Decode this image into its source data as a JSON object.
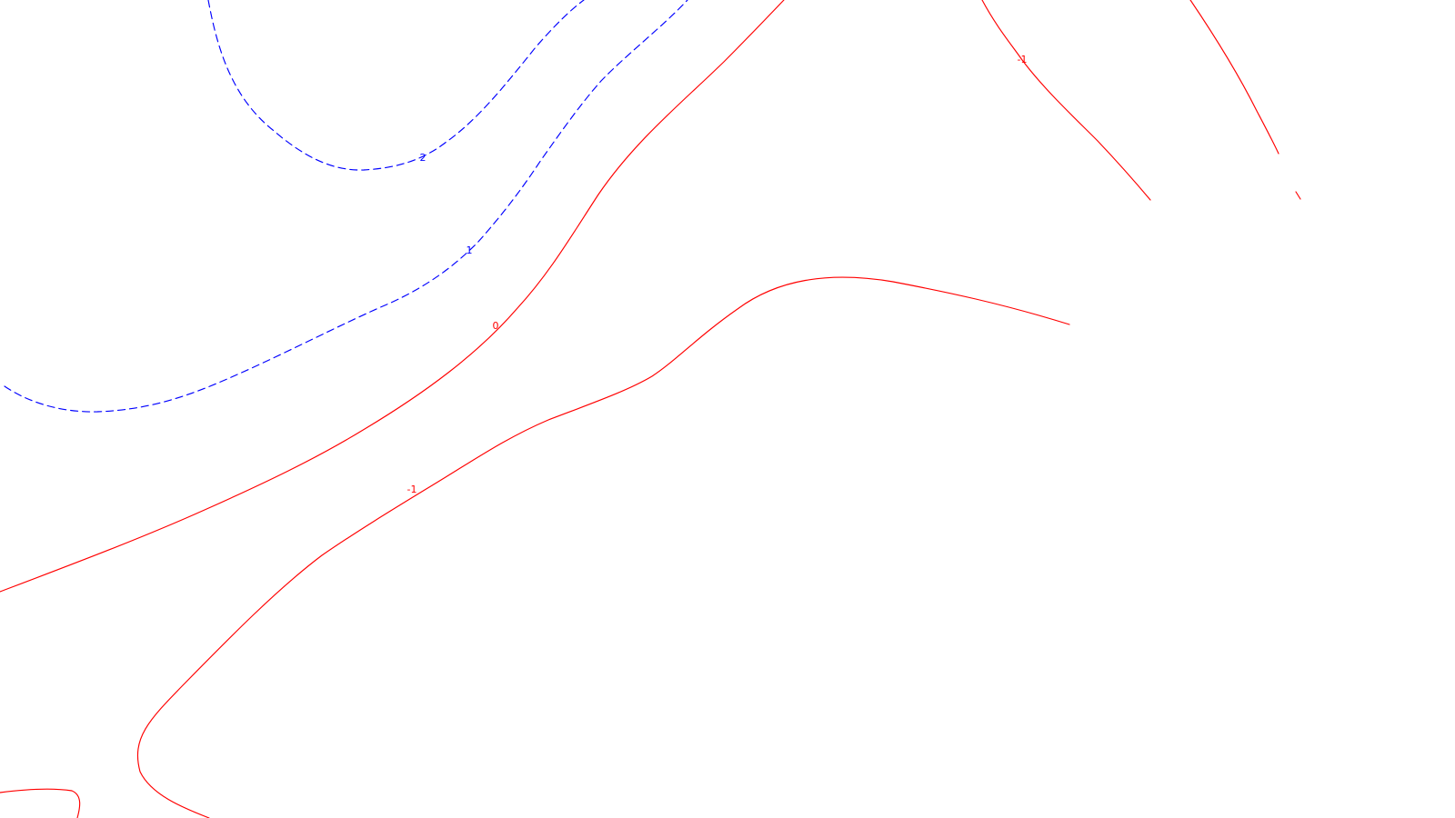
{
  "colors": {
    "background": "#ffffff",
    "positive": "#0000ff",
    "negative": "#ff0000"
  },
  "line_styles": {
    "positive": "dashed",
    "negative": "solid"
  },
  "contour_labels": {
    "positive_2": "2",
    "positive_1": "1",
    "zero": "0",
    "negative_1_mid": "-1",
    "negative_1_upper_right": "-1"
  }
}
